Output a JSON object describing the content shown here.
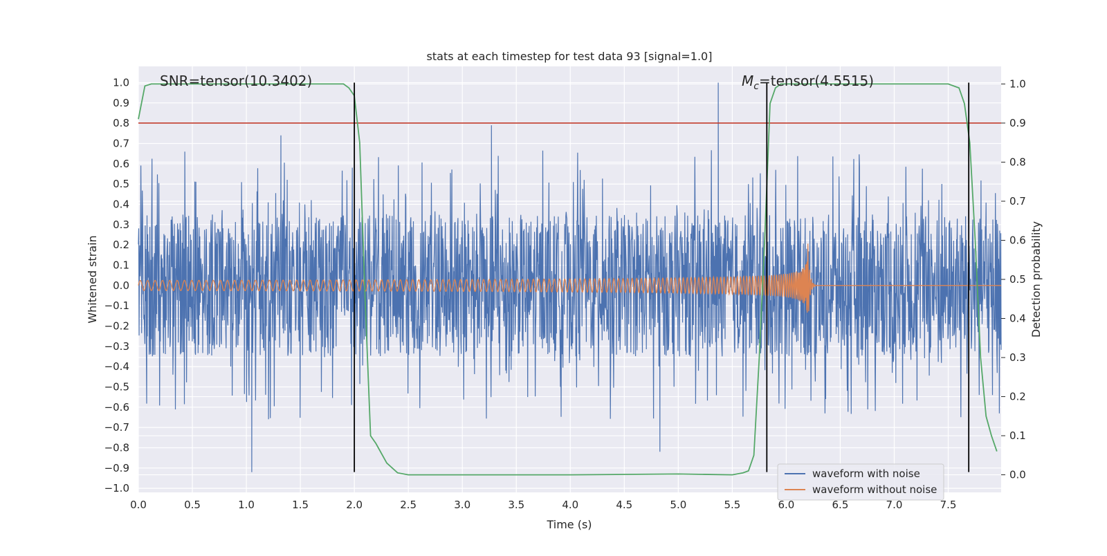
{
  "chart_data": {
    "type": "line",
    "title": "stats at each timestep for test data 93 [signal=1.0]",
    "xlabel": "Time (s)",
    "ylabel": "Whitened strain",
    "y2label": "Detection probability",
    "xlim": [
      0.0,
      7.99
    ],
    "ylim": [
      -1.02,
      1.08
    ],
    "y2lim": [
      -0.045,
      1.045
    ],
    "xticks": [
      0.0,
      0.5,
      1.0,
      1.5,
      2.0,
      2.5,
      3.0,
      3.5,
      4.0,
      4.5,
      5.0,
      5.5,
      6.0,
      6.5,
      7.0,
      7.5
    ],
    "xtick_labels": [
      "0.0",
      "0.5",
      "1.0",
      "1.5",
      "2.0",
      "2.5",
      "3.0",
      "3.5",
      "4.0",
      "4.5",
      "5.0",
      "5.5",
      "6.0",
      "6.5",
      "7.0",
      "7.5"
    ],
    "yticks": [
      -1.0,
      -0.9,
      -0.8,
      -0.7,
      -0.6,
      -0.5,
      -0.4,
      -0.3,
      -0.2,
      -0.1,
      0.0,
      0.1,
      0.2,
      0.3,
      0.4,
      0.5,
      0.6,
      0.7,
      0.8,
      0.9,
      1.0
    ],
    "ytick_labels": [
      "−1.0",
      "−0.9",
      "−0.8",
      "−0.7",
      "−0.6",
      "−0.5",
      "−0.4",
      "−0.3",
      "−0.2",
      "−0.1",
      "0.0",
      "0.1",
      "0.2",
      "0.3",
      "0.4",
      "0.5",
      "0.6",
      "0.7",
      "0.8",
      "0.9",
      "1.0"
    ],
    "y2ticks": [
      0.0,
      0.1,
      0.2,
      0.3,
      0.4,
      0.5,
      0.6,
      0.7,
      0.8,
      0.9,
      1.0
    ],
    "y2tick_labels": [
      "0.0",
      "0.1",
      "0.2",
      "0.3",
      "0.4",
      "0.5",
      "0.6",
      "0.7",
      "0.8",
      "0.9",
      "1.0"
    ],
    "annotations": [
      {
        "id": "snr",
        "text": "SNR=tensor(10.3402)",
        "x": 0.2,
        "y": 1.03
      },
      {
        "id": "mc",
        "text_symbol": "M",
        "text_subscript": "c",
        "text_rest": "=tensor(4.5515)",
        "x": 5.6,
        "y": 1.03
      }
    ],
    "threshold_line": {
      "y2": 0.9,
      "color": "#c0392b"
    },
    "vertical_lines": [
      {
        "x": 2.0,
        "y_from": -0.92,
        "y_to": 1.0
      },
      {
        "x": 5.82,
        "y_from": -0.92,
        "y_to": 1.0
      },
      {
        "x": 7.69,
        "y_from": -0.92,
        "y_to": 1.0
      }
    ],
    "series": [
      {
        "name": "waveform with noise",
        "color": "#4c72b0",
        "axis": "y",
        "kind": "noise-band",
        "band_min": -0.35,
        "band_max": 0.35,
        "spike_max": 1.0,
        "spike_min": -0.92,
        "notable_peaks": [
          [
            5.37,
            1.0
          ],
          [
            3.27,
            0.79
          ],
          [
            1.05,
            -0.92
          ],
          [
            4.83,
            -0.82
          ],
          [
            0.43,
            0.66
          ],
          [
            1.32,
            0.74
          ]
        ]
      },
      {
        "name": "waveform without noise",
        "color": "#dd8452",
        "axis": "y",
        "kind": "chirp",
        "start_amplitude": 0.025,
        "merger_time": 6.2,
        "merger_amplitude": 0.21,
        "post_merger": 0.0
      },
      {
        "name": "Detection probability",
        "color": "#55a868",
        "axis": "y2",
        "x": [
          0.0,
          0.06,
          0.12,
          0.2,
          0.5,
          1.0,
          1.5,
          1.8,
          1.9,
          1.95,
          2.0,
          2.05,
          2.1,
          2.15,
          2.2,
          2.3,
          2.4,
          2.5,
          3.0,
          4.0,
          5.0,
          5.5,
          5.6,
          5.65,
          5.7,
          5.75,
          5.8,
          5.85,
          5.9,
          5.95,
          6.0,
          6.5,
          7.0,
          7.4,
          7.5,
          7.6,
          7.65,
          7.7,
          7.75,
          7.8,
          7.85,
          7.9,
          7.95
        ],
        "y": [
          0.91,
          0.995,
          1.0,
          1.0,
          1.0,
          1.0,
          1.0,
          1.0,
          1.0,
          0.99,
          0.97,
          0.85,
          0.45,
          0.1,
          0.08,
          0.03,
          0.005,
          0.0,
          0.0,
          0.0,
          0.002,
          0.0,
          0.005,
          0.01,
          0.05,
          0.3,
          0.6,
          0.95,
          0.99,
          1.0,
          1.0,
          1.0,
          1.0,
          1.0,
          1.0,
          0.99,
          0.95,
          0.85,
          0.6,
          0.3,
          0.15,
          0.1,
          0.06
        ]
      }
    ],
    "legend": {
      "position": "bottom-right",
      "entries": [
        {
          "label": "waveform with noise",
          "color": "#4c72b0"
        },
        {
          "label": "waveform without noise",
          "color": "#dd8452"
        }
      ]
    },
    "background": "#eaeaf2",
    "gridline_color": "#ffffff"
  }
}
